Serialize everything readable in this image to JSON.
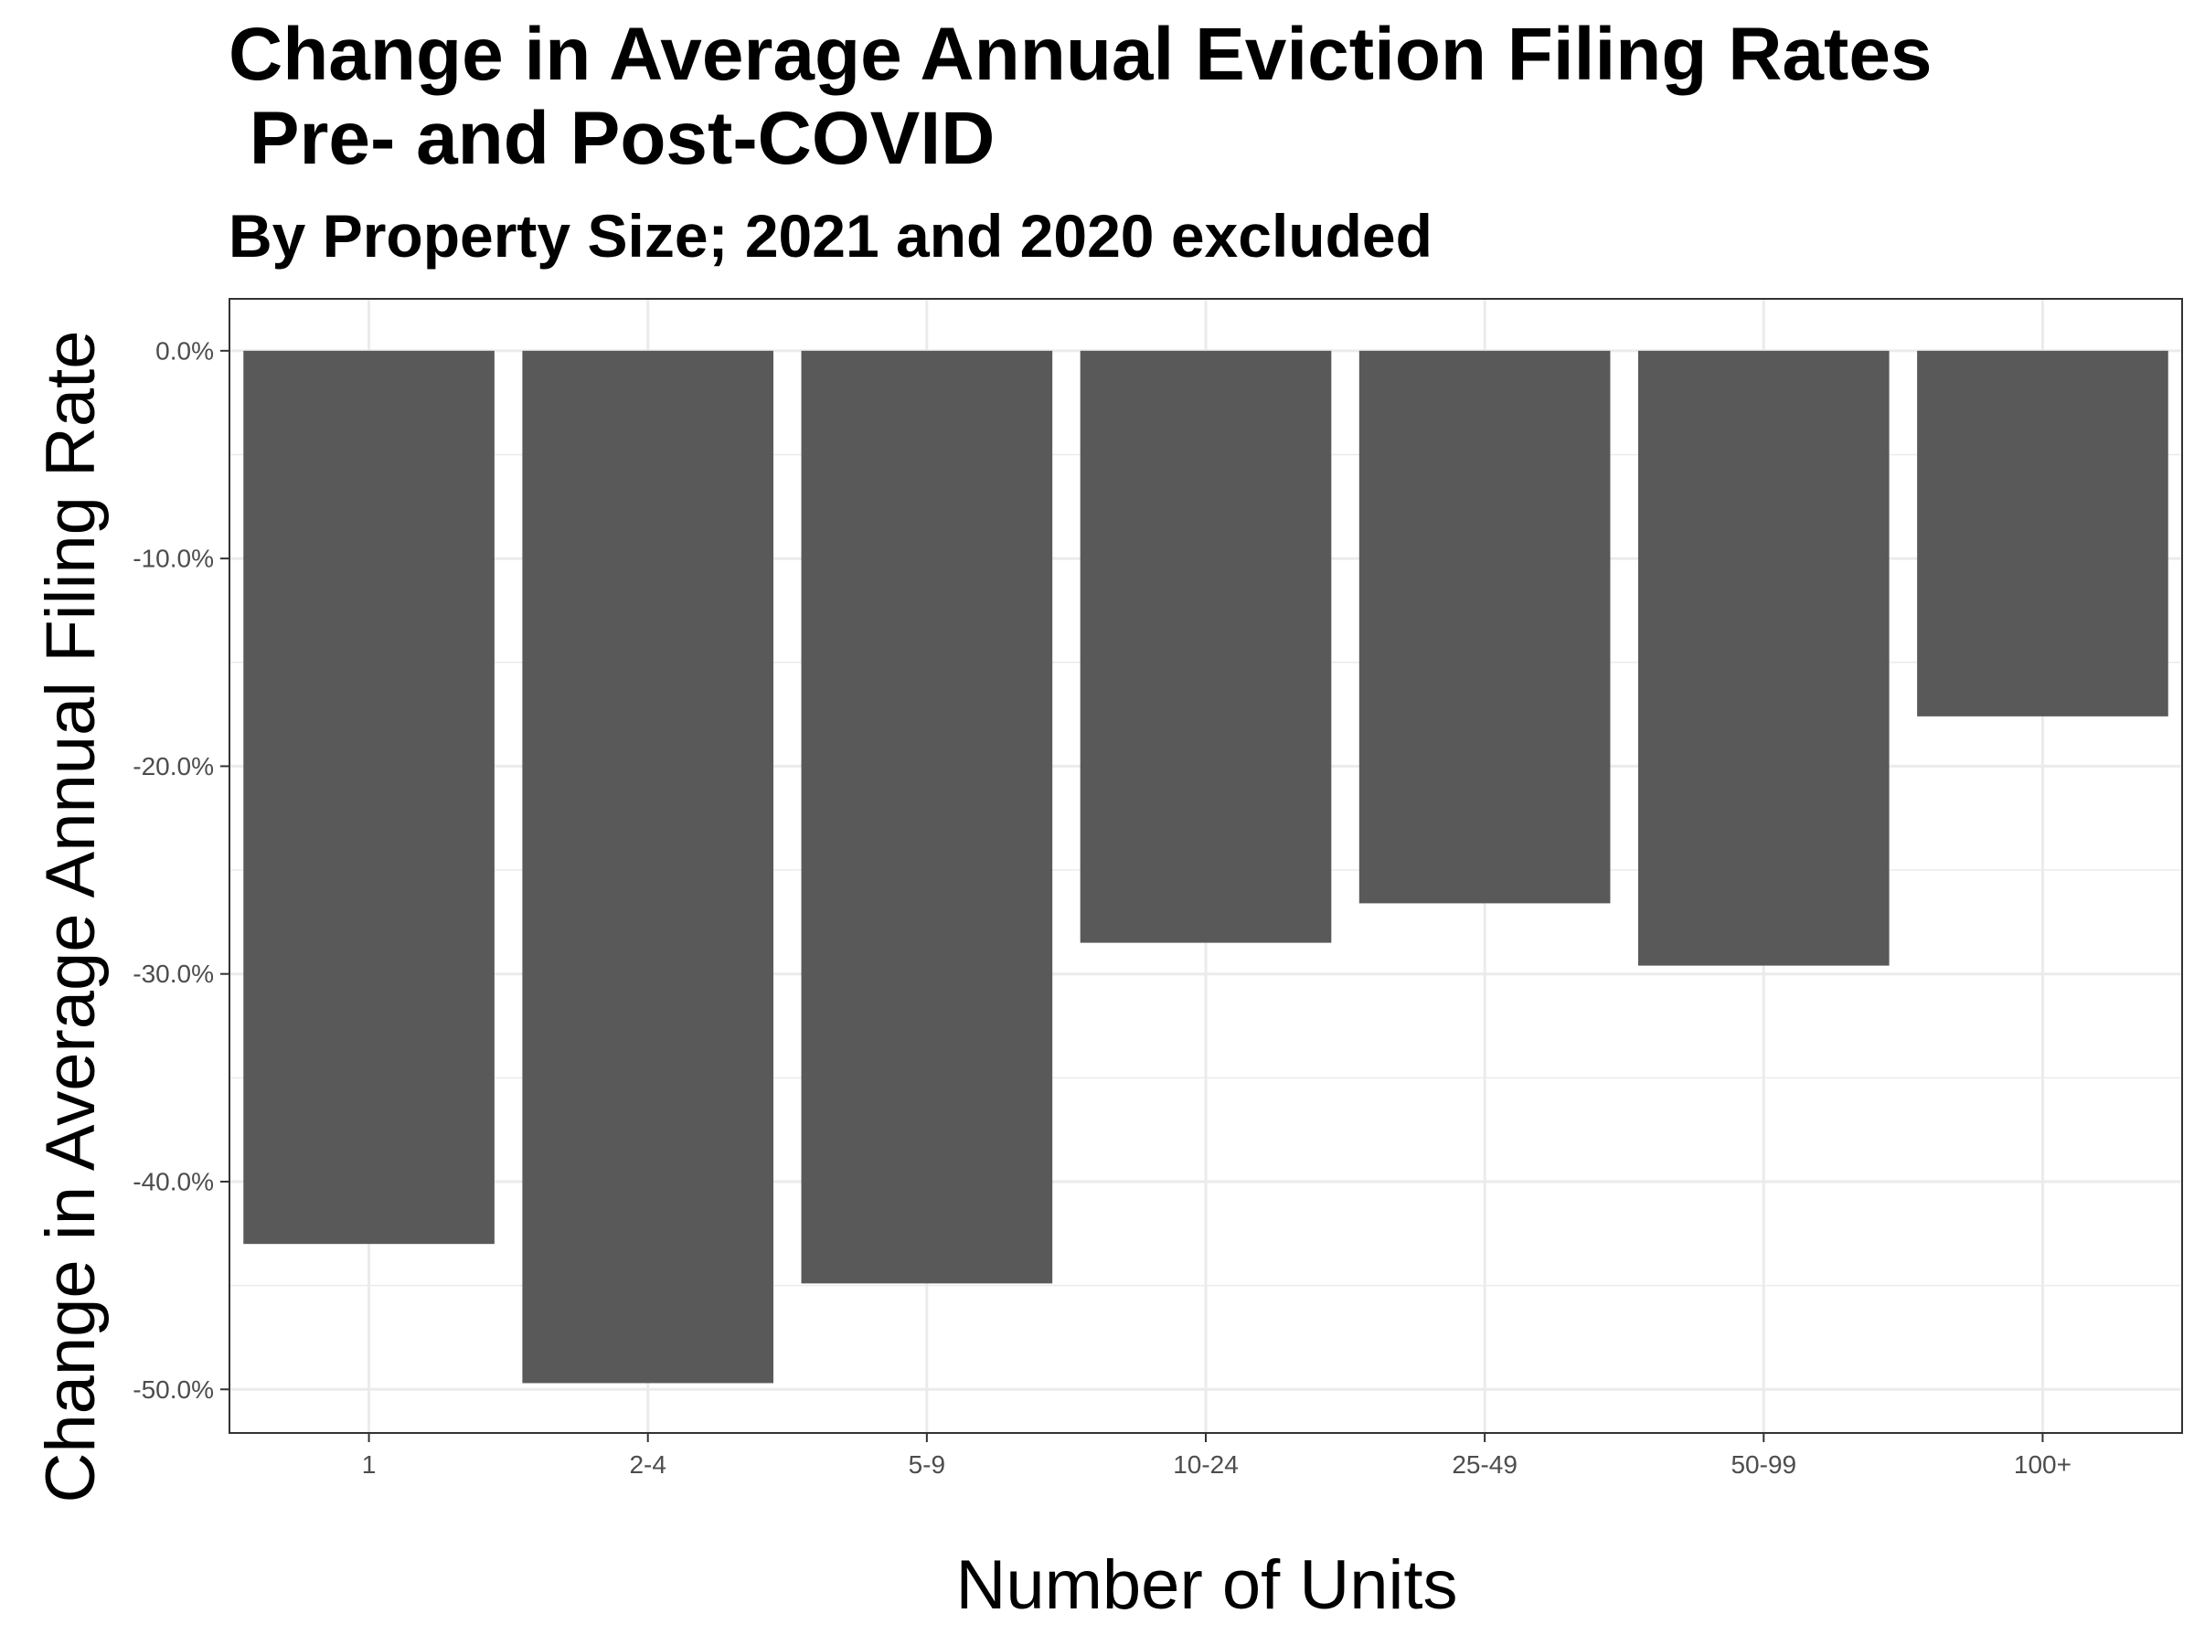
{
  "chart_data": {
    "type": "bar",
    "title": "Change in Average Annual Eviction Filing Rates\n Pre- and Post-COVID",
    "subtitle": "By Property Size; 2021 and 2020 excluded",
    "xlabel": "Number of Units",
    "ylabel": "Change in Average Annual Filing Rate",
    "categories": [
      "1",
      "2-4",
      "5-9",
      "10-24",
      "25-49",
      "50-99",
      "100+"
    ],
    "values": [
      -43.0,
      -49.7,
      -44.9,
      -28.5,
      -26.6,
      -29.6,
      -17.6
    ],
    "yticks": [
      0,
      -10,
      -20,
      -30,
      -40,
      -50
    ],
    "ytick_labels": [
      "0.0%",
      "-10.0%",
      "-20.0%",
      "-30.0%",
      "-40.0%",
      "-50.0%"
    ],
    "ylim": [
      -52.1,
      2.5
    ],
    "grid": true,
    "legend": "none",
    "bar_color": "#595959",
    "grid_color": "#ebebeb",
    "text_color": "#4d4d4d"
  }
}
